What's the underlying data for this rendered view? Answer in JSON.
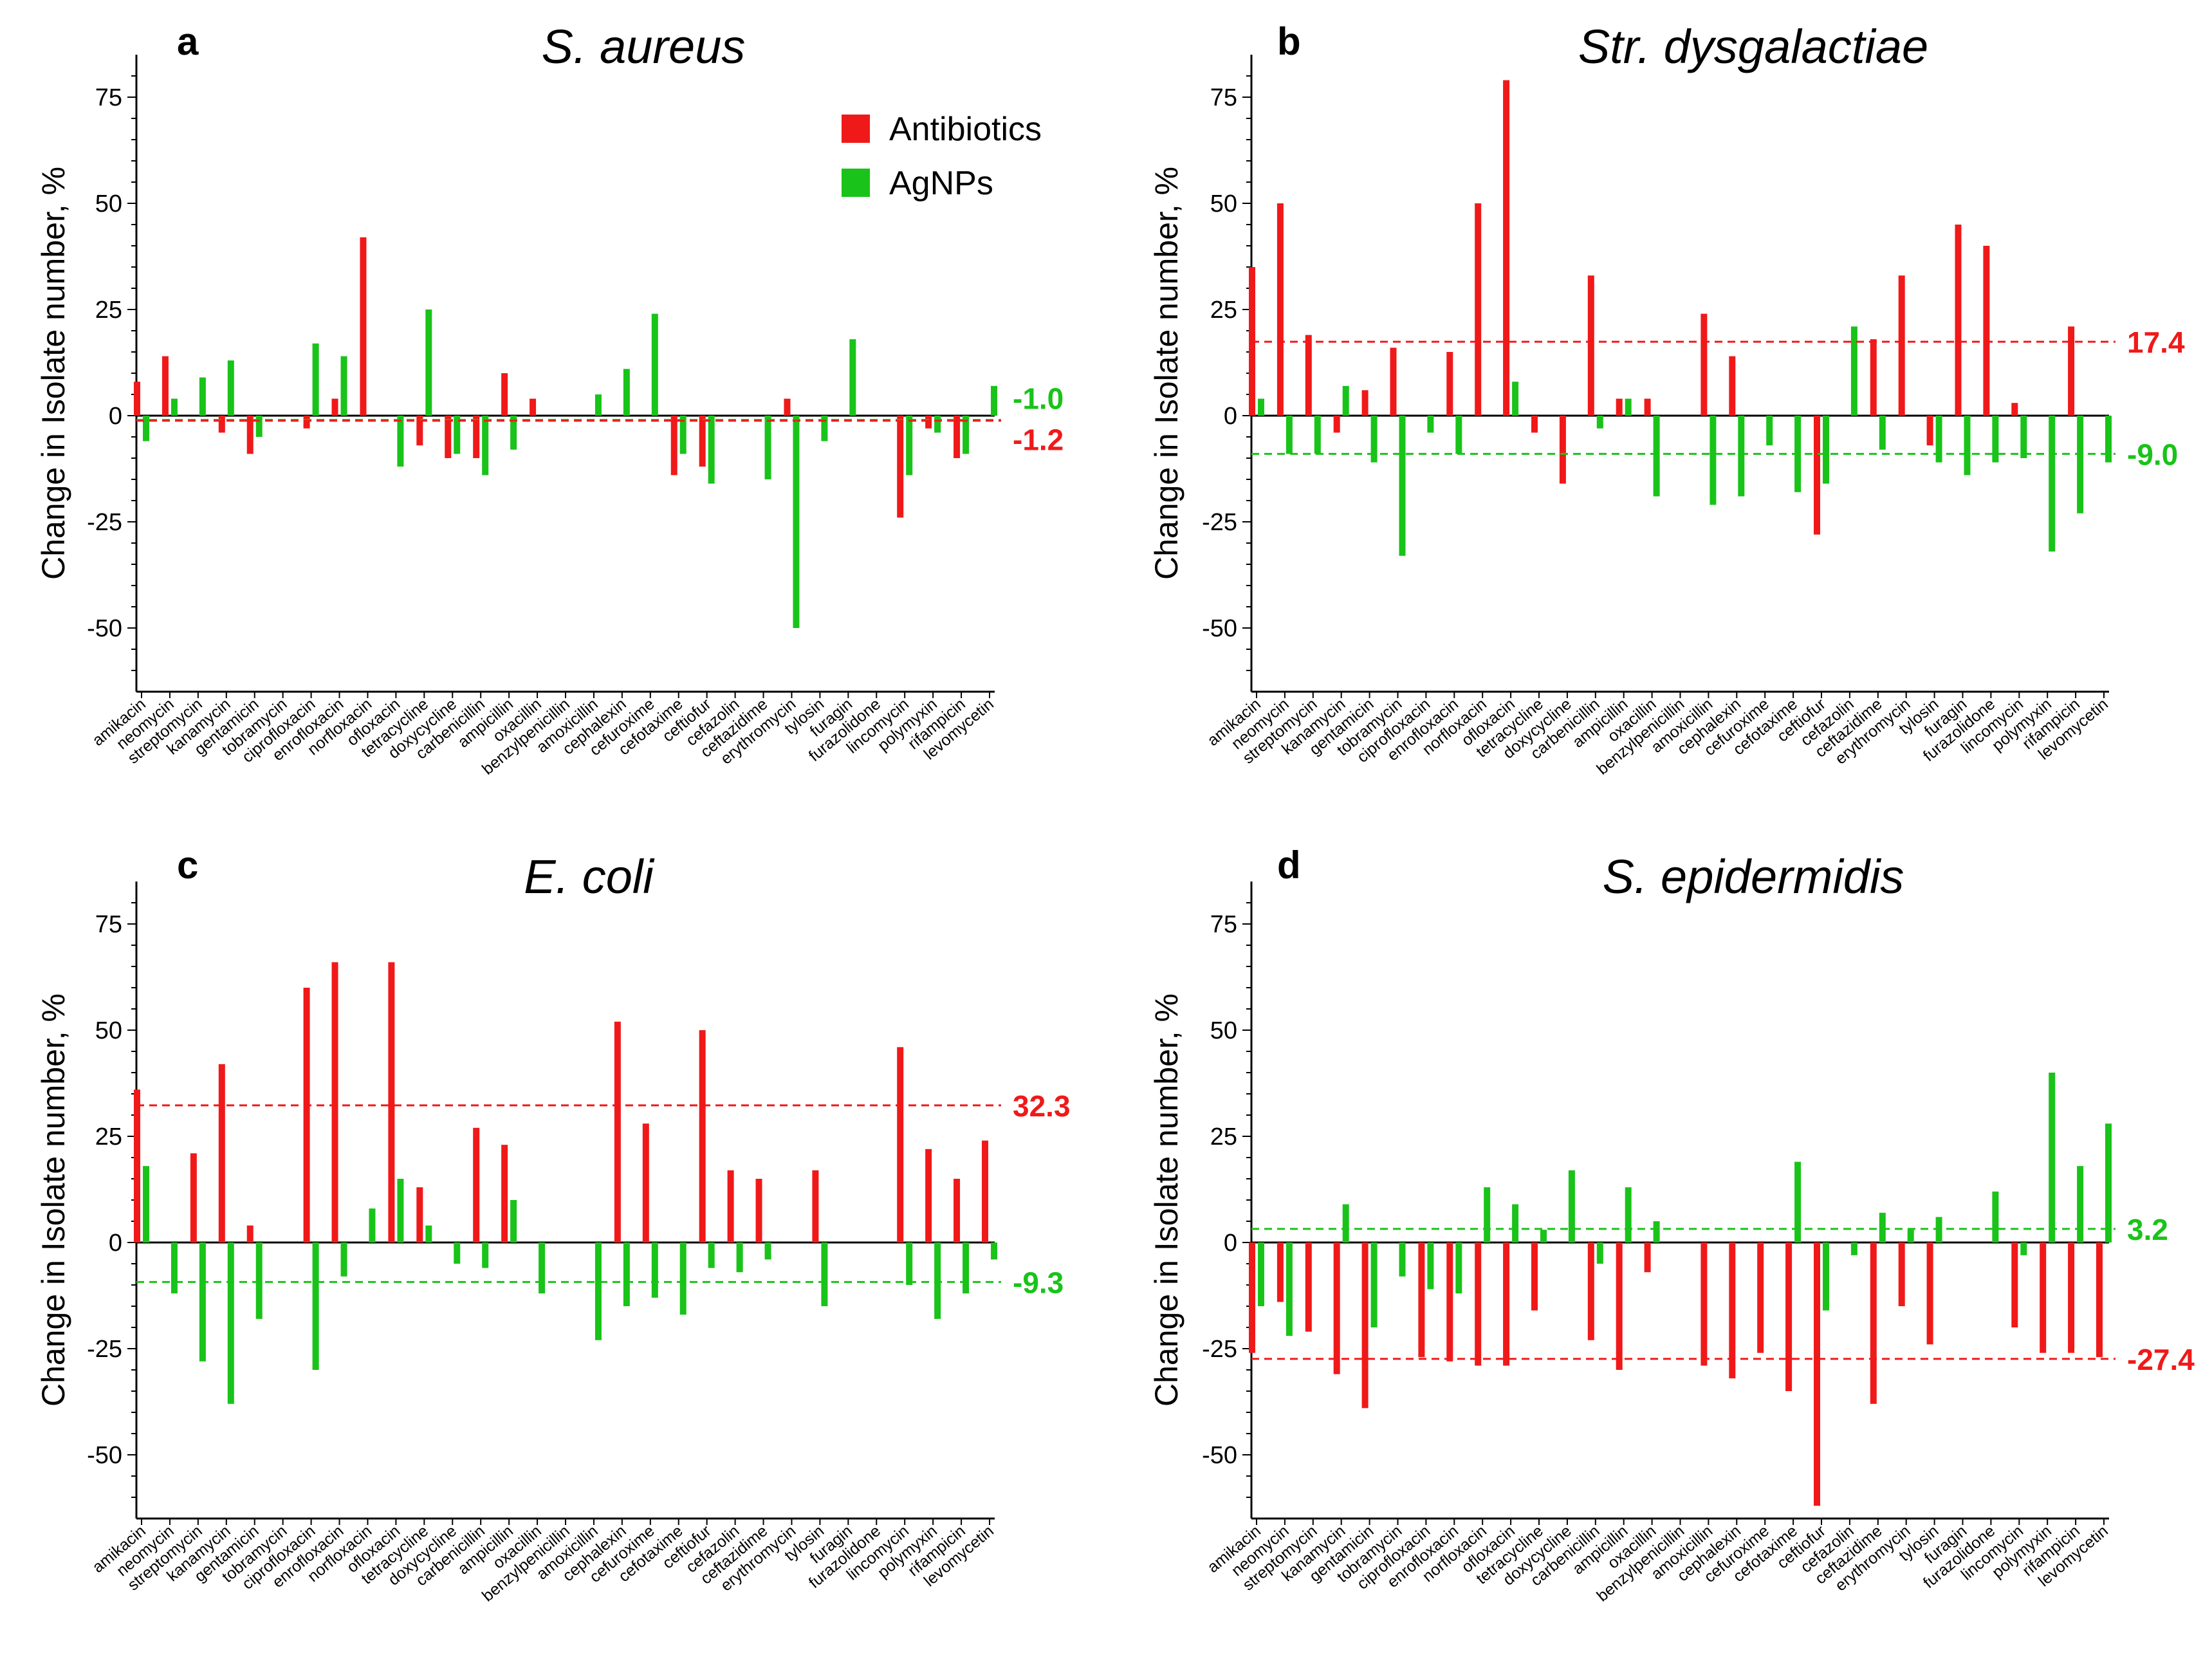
{
  "colors": {
    "antibiotics": "#f01919",
    "agnps": "#19c319",
    "axis": "#000000"
  },
  "legend": {
    "antibiotics": "Antibiotics",
    "agnps": "AgNPs"
  },
  "categories": [
    "amikacin",
    "neomycin",
    "streptomycin",
    "kanamycin",
    "gentamicin",
    "tobramycin",
    "ciprofloxacin",
    "enrofloxacin",
    "norfloxacin",
    "ofloxacin",
    "tetracycline",
    "doxycycline",
    "carbenicillin",
    "ampicillin",
    "oxacillin",
    "benzylpenicillin",
    "amoxicillin",
    "cephalexin",
    "cefuroxime",
    "cefotaxime",
    "ceftiofur",
    "cefazolin",
    "ceftazidime",
    "erythromycin",
    "tylosin",
    "furagin",
    "furazolidone",
    "lincomycin",
    "polymyxin",
    "rifampicin",
    "levomycetin"
  ],
  "chart_data": [
    {
      "type": "bar",
      "letter": "a",
      "title": "S. aureus",
      "ylabel": "Change in Isolate number, %",
      "ylim": [
        -65,
        85
      ],
      "yticks": [
        "75",
        "50",
        "25",
        "0",
        "-25",
        "-50"
      ],
      "series": [
        {
          "name": "Antibiotics",
          "values": [
            8,
            14,
            0,
            -4,
            -9,
            0,
            -3,
            4,
            42,
            0,
            -7,
            -10,
            -10,
            10,
            4,
            0,
            0,
            0,
            0,
            -14,
            -12,
            0,
            0,
            4,
            0,
            0,
            0,
            -24,
            -3,
            -10,
            0
          ]
        },
        {
          "name": "AgNPs",
          "values": [
            -6,
            4,
            9,
            13,
            -5,
            0,
            17,
            14,
            0,
            -12,
            25,
            -9,
            -14,
            -8,
            0,
            0,
            5,
            11,
            24,
            -9,
            -16,
            0,
            -15,
            -50,
            -6,
            18,
            0,
            -14,
            -4,
            -9,
            7
          ]
        }
      ],
      "means": [
        {
          "series": "AgNPs",
          "value": -1.0,
          "label": "-1.0"
        },
        {
          "series": "Antibiotics",
          "value": -1.2,
          "label": "-1.2"
        }
      ],
      "show_legend": true
    },
    {
      "type": "bar",
      "letter": "b",
      "title": "Str. dysgalactiae",
      "ylabel": "Change in Isolate number, %",
      "ylim": [
        -65,
        85
      ],
      "yticks": [
        "75",
        "50",
        "25",
        "0",
        "-25",
        "-50"
      ],
      "series": [
        {
          "name": "Antibiotics",
          "values": [
            35,
            50,
            19,
            -4,
            6,
            16,
            0,
            15,
            50,
            79,
            -4,
            -16,
            33,
            4,
            4,
            0,
            24,
            14,
            0,
            0,
            -28,
            0,
            18,
            33,
            -7,
            45,
            40,
            3,
            0,
            21,
            0
          ]
        },
        {
          "name": "AgNPs",
          "values": [
            4,
            -9,
            -9,
            7,
            -11,
            -33,
            -4,
            -9,
            0,
            8,
            0,
            0,
            -3,
            4,
            -19,
            0,
            -21,
            -19,
            -7,
            -18,
            -16,
            21,
            -8,
            0,
            -11,
            -14,
            -11,
            -10,
            -32,
            -23,
            -11
          ]
        }
      ],
      "means": [
        {
          "series": "Antibiotics",
          "value": 17.4,
          "label": "17.4"
        },
        {
          "series": "AgNPs",
          "value": -9.0,
          "label": "-9.0"
        }
      ],
      "show_legend": false
    },
    {
      "type": "bar",
      "letter": "c",
      "title": "E. coli",
      "ylabel": "Change in Isolate number, %",
      "ylim": [
        -65,
        85
      ],
      "yticks": [
        "75",
        "50",
        "25",
        "0",
        "-25",
        "-50"
      ],
      "series": [
        {
          "name": "Antibiotics",
          "values": [
            36,
            0,
            21,
            42,
            4,
            0,
            60,
            66,
            0,
            66,
            13,
            0,
            27,
            23,
            0,
            0,
            0,
            52,
            28,
            0,
            50,
            17,
            15,
            0,
            17,
            0,
            0,
            46,
            22,
            15,
            24
          ]
        },
        {
          "name": "AgNPs",
          "values": [
            18,
            -12,
            -28,
            -38,
            -18,
            0,
            -30,
            -8,
            8,
            15,
            4,
            -5,
            -6,
            10,
            -12,
            0,
            -23,
            -15,
            -13,
            -17,
            -6,
            -7,
            -4,
            0,
            -15,
            0,
            0,
            -10,
            -18,
            -12,
            -4
          ]
        }
      ],
      "means": [
        {
          "series": "Antibiotics",
          "value": 32.3,
          "label": "32.3"
        },
        {
          "series": "AgNPs",
          "value": -9.3,
          "label": "-9.3"
        }
      ],
      "show_legend": false
    },
    {
      "type": "bar",
      "letter": "d",
      "title": "S. epidermidis",
      "ylabel": "Change in Isolate number, %",
      "ylim": [
        -65,
        85
      ],
      "yticks": [
        "75",
        "50",
        "25",
        "0",
        "-25",
        "-50"
      ],
      "series": [
        {
          "name": "Antibiotics",
          "values": [
            -26,
            -14,
            -21,
            -31,
            -39,
            0,
            -27,
            -28,
            -29,
            -29,
            -16,
            0,
            -23,
            -30,
            -7,
            0,
            -29,
            -32,
            -26,
            -35,
            -62,
            0,
            -38,
            -15,
            -24,
            0,
            0,
            -20,
            -26,
            -26,
            -27
          ]
        },
        {
          "name": "AgNPs",
          "values": [
            -15,
            -22,
            0,
            9,
            -20,
            -8,
            -11,
            -12,
            13,
            9,
            3,
            17,
            -5,
            13,
            5,
            0,
            0,
            0,
            0,
            19,
            -16,
            -3,
            7,
            3,
            6,
            0,
            12,
            -3,
            40,
            18,
            28
          ]
        }
      ],
      "means": [
        {
          "series": "AgNPs",
          "value": 3.2,
          "label": "3.2"
        },
        {
          "series": "Antibiotics",
          "value": -27.4,
          "label": "-27.4"
        }
      ],
      "show_legend": false
    }
  ]
}
